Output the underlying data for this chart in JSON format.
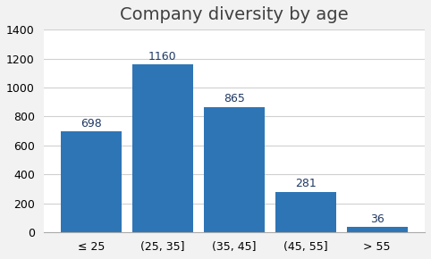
{
  "title": "Company diversity by age",
  "categories": [
    "≤ 25",
    "(25, 35]",
    "(35, 45]",
    "(45, 55]",
    "> 55"
  ],
  "values": [
    698,
    1160,
    865,
    281,
    36
  ],
  "bar_color": "#2E75B6",
  "label_color": "#1F3864",
  "ylim": [
    0,
    1400
  ],
  "yticks": [
    0,
    200,
    400,
    600,
    800,
    1000,
    1200,
    1400
  ],
  "background_color": "#f2f2f2",
  "plot_background": "#ffffff",
  "title_fontsize": 14,
  "label_fontsize": 9,
  "tick_fontsize": 9
}
